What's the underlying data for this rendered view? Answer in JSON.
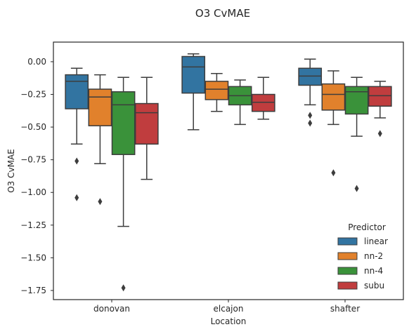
{
  "chart_data": {
    "type": "box",
    "title": "O3 CvMAE",
    "xlabel": "Location",
    "ylabel": "O3 CvMAE",
    "ylim": [
      -1.82,
      0.15
    ],
    "yticks": [
      0.0,
      -0.25,
      -0.5,
      -0.75,
      -1.0,
      -1.25,
      -1.5,
      -1.75
    ],
    "ytick_labels": [
      "0.00",
      "−0.25",
      "−0.50",
      "−0.75",
      "−1.00",
      "−1.25",
      "−1.50",
      "−1.75"
    ],
    "categories": [
      "donovan",
      "elcajon",
      "shafter"
    ],
    "grid": false,
    "legend": {
      "title": "Predictor",
      "placement": "lower-right"
    },
    "series": [
      {
        "name": "linear",
        "color": "#3274a1",
        "boxes": [
          {
            "q1": -0.36,
            "median": -0.15,
            "q3": -0.1,
            "whisker_low": -0.63,
            "whisker_high": -0.05,
            "outliers": [
              -0.76,
              -1.04
            ]
          },
          {
            "q1": -0.24,
            "median": -0.04,
            "q3": 0.04,
            "whisker_low": -0.52,
            "whisker_high": 0.06,
            "outliers": []
          },
          {
            "q1": -0.18,
            "median": -0.11,
            "q3": -0.05,
            "whisker_low": -0.33,
            "whisker_high": 0.02,
            "outliers": [
              -0.41,
              -0.47
            ]
          }
        ]
      },
      {
        "name": "nn-2",
        "color": "#e1812c",
        "boxes": [
          {
            "q1": -0.49,
            "median": -0.27,
            "q3": -0.21,
            "whisker_low": -0.78,
            "whisker_high": -0.1,
            "outliers": [
              -1.07
            ]
          },
          {
            "q1": -0.29,
            "median": -0.21,
            "q3": -0.15,
            "whisker_low": -0.38,
            "whisker_high": -0.09,
            "outliers": []
          },
          {
            "q1": -0.37,
            "median": -0.25,
            "q3": -0.17,
            "whisker_low": -0.48,
            "whisker_high": -0.07,
            "outliers": [
              -0.85
            ]
          }
        ]
      },
      {
        "name": "nn-4",
        "color": "#3a923a",
        "boxes": [
          {
            "q1": -0.71,
            "median": -0.33,
            "q3": -0.23,
            "whisker_low": -1.26,
            "whisker_high": -0.12,
            "outliers": [
              -1.73
            ]
          },
          {
            "q1": -0.33,
            "median": -0.26,
            "q3": -0.19,
            "whisker_low": -0.48,
            "whisker_high": -0.14,
            "outliers": []
          },
          {
            "q1": -0.4,
            "median": -0.23,
            "q3": -0.19,
            "whisker_low": -0.57,
            "whisker_high": -0.12,
            "outliers": [
              -0.97
            ]
          }
        ]
      },
      {
        "name": "subu",
        "color": "#c03d3e",
        "boxes": [
          {
            "q1": -0.63,
            "median": -0.39,
            "q3": -0.32,
            "whisker_low": -0.9,
            "whisker_high": -0.12,
            "outliers": []
          },
          {
            "q1": -0.38,
            "median": -0.31,
            "q3": -0.25,
            "whisker_low": -0.44,
            "whisker_high": -0.12,
            "outliers": []
          },
          {
            "q1": -0.34,
            "median": -0.26,
            "q3": -0.19,
            "whisker_low": -0.43,
            "whisker_high": -0.15,
            "outliers": [
              -0.55
            ]
          }
        ]
      }
    ]
  }
}
